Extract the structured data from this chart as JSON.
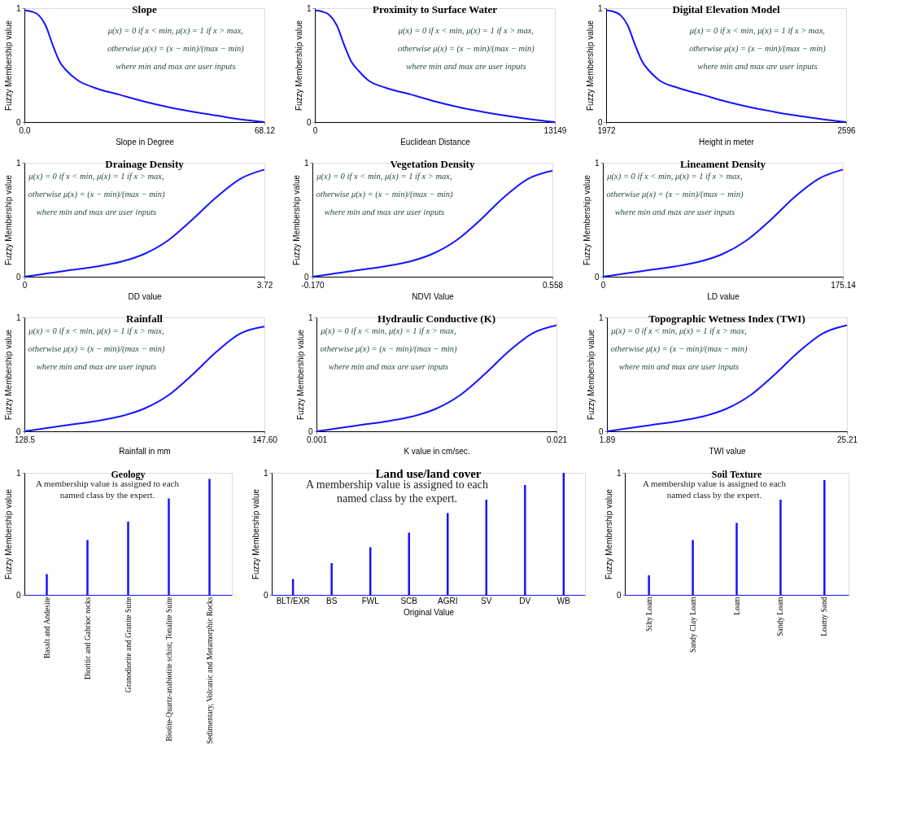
{
  "chart_data": [
    {
      "type": "line",
      "title": "Slope",
      "xlabel": "Slope in Degree",
      "ylabel": "Fuzzy Membership value",
      "x": [
        0,
        2,
        4,
        6,
        8,
        10,
        12,
        15,
        20,
        27,
        34,
        41,
        48,
        55,
        61,
        68.12
      ],
      "values": [
        0.98,
        0.97,
        0.94,
        0.85,
        0.68,
        0.53,
        0.45,
        0.37,
        0.3,
        0.24,
        0.18,
        0.13,
        0.09,
        0.055,
        0.025,
        0
      ],
      "color": "#1414ff",
      "xlim": [
        0,
        68.12
      ],
      "ylim": [
        0,
        1
      ],
      "xticks": [
        {
          "value": 0,
          "label": "0.0"
        },
        68.12
      ],
      "yticks": [
        0,
        1
      ],
      "annotations": [
        "μ(x) = 0 if x < min, μ(x) = 1 if x > max,",
        "otherwise μ(x) = (x − min)/(max − min)",
        "where min and max are user inputs"
      ]
    },
    {
      "type": "line",
      "title": "Proximity to Surface Water",
      "xlabel": "Euclidean Distance",
      "ylabel": "Fuzzy Membership value",
      "x": [
        0,
        400,
        800,
        1200,
        1600,
        2000,
        2400,
        2900,
        3900,
        5300,
        6600,
        7900,
        9200,
        10500,
        11800,
        13149
      ],
      "values": [
        0.98,
        0.97,
        0.94,
        0.85,
        0.68,
        0.53,
        0.45,
        0.37,
        0.3,
        0.24,
        0.18,
        0.13,
        0.09,
        0.055,
        0.025,
        0
      ],
      "color": "#1414ff",
      "xlim": [
        0,
        13149
      ],
      "ylim": [
        0,
        1
      ],
      "xticks": [
        0,
        13149
      ],
      "yticks": [
        0,
        1
      ],
      "annotations": [
        "μ(x) = 0 if x < min, μ(x) = 1 if x > max,",
        "otherwise μ(x) = (x − min)/(max − min)",
        "where min and max are user inputs"
      ]
    },
    {
      "type": "line",
      "title": "Digital Elevation Model",
      "xlabel": "Height in meter",
      "ylabel": "Fuzzy Membership value",
      "x": [
        1972,
        1991,
        2009,
        2028,
        2047,
        2066,
        2084,
        2109,
        2159,
        2222,
        2284,
        2346,
        2409,
        2471,
        2534,
        2596
      ],
      "values": [
        0.98,
        0.97,
        0.94,
        0.85,
        0.68,
        0.53,
        0.45,
        0.37,
        0.3,
        0.24,
        0.18,
        0.13,
        0.09,
        0.055,
        0.025,
        0
      ],
      "color": "#1414ff",
      "xlim": [
        1972,
        2596
      ],
      "ylim": [
        0,
        1
      ],
      "xticks": [
        1972,
        2596
      ],
      "yticks": [
        0,
        1
      ],
      "annotations": [
        "μ(x) = 0 if x < min, μ(x) = 1 if x > max,",
        "otherwise μ(x) = (x − min)/(max − min)",
        "where min and max are user inputs"
      ]
    },
    {
      "type": "line",
      "title": "Drainage Density",
      "xlabel": "DD value",
      "ylabel": "Fuzzy Membership value",
      "x": [
        0,
        0.37,
        0.74,
        1.12,
        1.49,
        1.86,
        2.23,
        2.6,
        2.98,
        3.35,
        3.72
      ],
      "values": [
        0,
        0.03,
        0.06,
        0.09,
        0.13,
        0.2,
        0.32,
        0.5,
        0.7,
        0.86,
        0.94
      ],
      "color": "#1414ff",
      "xlim": [
        0,
        3.72
      ],
      "ylim": [
        0,
        1
      ],
      "xticks": [
        0,
        3.72
      ],
      "yticks": [
        0,
        1
      ],
      "annotations": [
        "μ(x) = 0 if x < min, μ(x) = 1 if x > max,",
        "otherwise μ(x) = (x − min)/(max − min)",
        "where min and max are user inputs"
      ]
    },
    {
      "type": "line",
      "title": "Vegetation Density",
      "xlabel": "NDVI Value",
      "ylabel": "Fuzzy Membership value",
      "x": [
        -0.17,
        -0.097,
        -0.024,
        0.048,
        0.121,
        0.194,
        0.267,
        0.34,
        0.412,
        0.485,
        0.558
      ],
      "values": [
        0,
        0.03,
        0.06,
        0.09,
        0.13,
        0.2,
        0.32,
        0.5,
        0.7,
        0.86,
        0.93
      ],
      "color": "#1414ff",
      "xlim": [
        -0.17,
        0.558
      ],
      "ylim": [
        0,
        1
      ],
      "xticks": [
        {
          "value": -0.17,
          "label": "-0.170"
        },
        0.558
      ],
      "yticks": [
        0,
        1
      ],
      "annotations": [
        "μ(x) = 0 if x < min, μ(x) = 1 if x > max,",
        "otherwise μ(x) = (x − min)/(max − min)",
        "where min and max are user inputs"
      ]
    },
    {
      "type": "line",
      "title": "Lineament Density",
      "xlabel": "LD value",
      "ylabel": "Fuzzy Membership value",
      "x": [
        0,
        17.5,
        35,
        52.5,
        70,
        87.6,
        105,
        122.6,
        140,
        157.6,
        175.14
      ],
      "values": [
        0,
        0.03,
        0.06,
        0.09,
        0.13,
        0.2,
        0.32,
        0.5,
        0.7,
        0.86,
        0.94
      ],
      "color": "#1414ff",
      "xlim": [
        0,
        175.14
      ],
      "ylim": [
        0,
        1
      ],
      "xticks": [
        0,
        175.14
      ],
      "yticks": [
        0,
        1
      ],
      "annotations": [
        "μ(x) = 0 if x < min, μ(x) = 1 if x > max,",
        "otherwise μ(x) = (x − min)/(max − min)",
        "where min and max are user inputs"
      ]
    },
    {
      "type": "line",
      "title": "Rainfall",
      "xlabel": "Rainfall in mm",
      "ylabel": "Fuzzy Membership value",
      "x": [
        128.5,
        130.4,
        132.3,
        134.2,
        136.1,
        138.05,
        140.0,
        141.9,
        143.8,
        145.7,
        147.6
      ],
      "values": [
        0,
        0.03,
        0.06,
        0.09,
        0.13,
        0.2,
        0.32,
        0.5,
        0.7,
        0.86,
        0.92
      ],
      "color": "#1414ff",
      "xlim": [
        128.5,
        147.6
      ],
      "ylim": [
        0,
        1
      ],
      "xticks": [
        128.5,
        {
          "value": 147.6,
          "label": "147.60"
        }
      ],
      "yticks": [
        0,
        1
      ],
      "annotations": [
        "μ(x) = 0 if x < min, μ(x) = 1 if x > max,",
        "otherwise μ(x) = (x − min)/(max − min)",
        "where min and max are user inputs"
      ]
    },
    {
      "type": "line",
      "title": "Hydraulic Conductive (K)",
      "xlabel": "K value in cm/sec.",
      "ylabel": "Fuzzy Membership value",
      "x": [
        0.001,
        0.003,
        0.005,
        0.007,
        0.009,
        0.011,
        0.013,
        0.015,
        0.017,
        0.019,
        0.021
      ],
      "values": [
        0,
        0.03,
        0.06,
        0.09,
        0.13,
        0.2,
        0.32,
        0.5,
        0.7,
        0.86,
        0.93
      ],
      "color": "#1414ff",
      "xlim": [
        0.001,
        0.021
      ],
      "ylim": [
        0,
        1
      ],
      "xticks": [
        0.001,
        0.021
      ],
      "yticks": [
        0,
        1
      ],
      "annotations": [
        "μ(x) = 0 if x < min, μ(x) = 1 if x > max,",
        "otherwise μ(x) = (x − min)/(max − min)",
        "where min and max are user inputs"
      ]
    },
    {
      "type": "line",
      "title": "Topographic Wetness Index (TWI)",
      "xlabel": "TWI value",
      "ylabel": "Fuzzy Membership value",
      "x": [
        1.89,
        4.22,
        6.55,
        8.89,
        11.22,
        13.55,
        15.88,
        18.21,
        20.55,
        22.88,
        25.21
      ],
      "values": [
        0,
        0.03,
        0.06,
        0.09,
        0.13,
        0.2,
        0.32,
        0.5,
        0.7,
        0.86,
        0.93
      ],
      "color": "#1414ff",
      "xlim": [
        1.89,
        25.21
      ],
      "ylim": [
        0,
        1
      ],
      "xticks": [
        1.89,
        25.21
      ],
      "yticks": [
        0,
        1
      ],
      "annotations": [
        "μ(x) = 0 if x < min, μ(x) = 1 if x > max,",
        "otherwise μ(x) = (x − min)/(max − min)",
        "where min and max are user inputs"
      ]
    },
    {
      "type": "bar",
      "title": "Geology",
      "ylabel": "Fuzzy Membership value",
      "categories": [
        "Basalt and Andesite",
        "Dioritic and Gabrioc rocks",
        "Granodiorite and Granite Suite",
        "Biotite-Quartz-anabiotite schist; Tonalite Suite",
        "Sedimentary, Volcanic and Metamorphic Rocks"
      ],
      "values": [
        0.17,
        0.45,
        0.6,
        0.79,
        0.95
      ],
      "color": "#1414ff",
      "ylim": [
        0,
        1
      ],
      "yticks": [
        0,
        1
      ],
      "annotations": [
        "A membership value is assigned to each named class by the expert."
      ]
    },
    {
      "type": "bar",
      "title": "Land use/land cover",
      "xlabel": "Original Value",
      "ylabel": "Fuzzy Membership value",
      "categories": [
        "BLT/EXR",
        "BS",
        "FWL",
        "SCB",
        "AGRI",
        "SV",
        "DV",
        "WB"
      ],
      "values": [
        0.13,
        0.26,
        0.39,
        0.51,
        0.67,
        0.78,
        0.9,
        1.0
      ],
      "color": "#1414ff",
      "ylim": [
        0,
        1
      ],
      "yticks": [
        0,
        1
      ],
      "annotations": [
        "A membership value is assigned to each named class by the expert."
      ]
    },
    {
      "type": "bar",
      "title": "Soil Texture",
      "ylabel": "Fuzzy Membership value",
      "categories": [
        "Silty Loam",
        "Sandy Clay Loam",
        "Loam",
        "Sandy Loam",
        "Loamy Sand"
      ],
      "values": [
        0.16,
        0.45,
        0.59,
        0.78,
        0.94
      ],
      "color": "#1414ff",
      "ylim": [
        0,
        1
      ],
      "yticks": [
        0,
        1
      ],
      "annotations": [
        "A membership value is assigned to each named class by the expert."
      ]
    }
  ]
}
